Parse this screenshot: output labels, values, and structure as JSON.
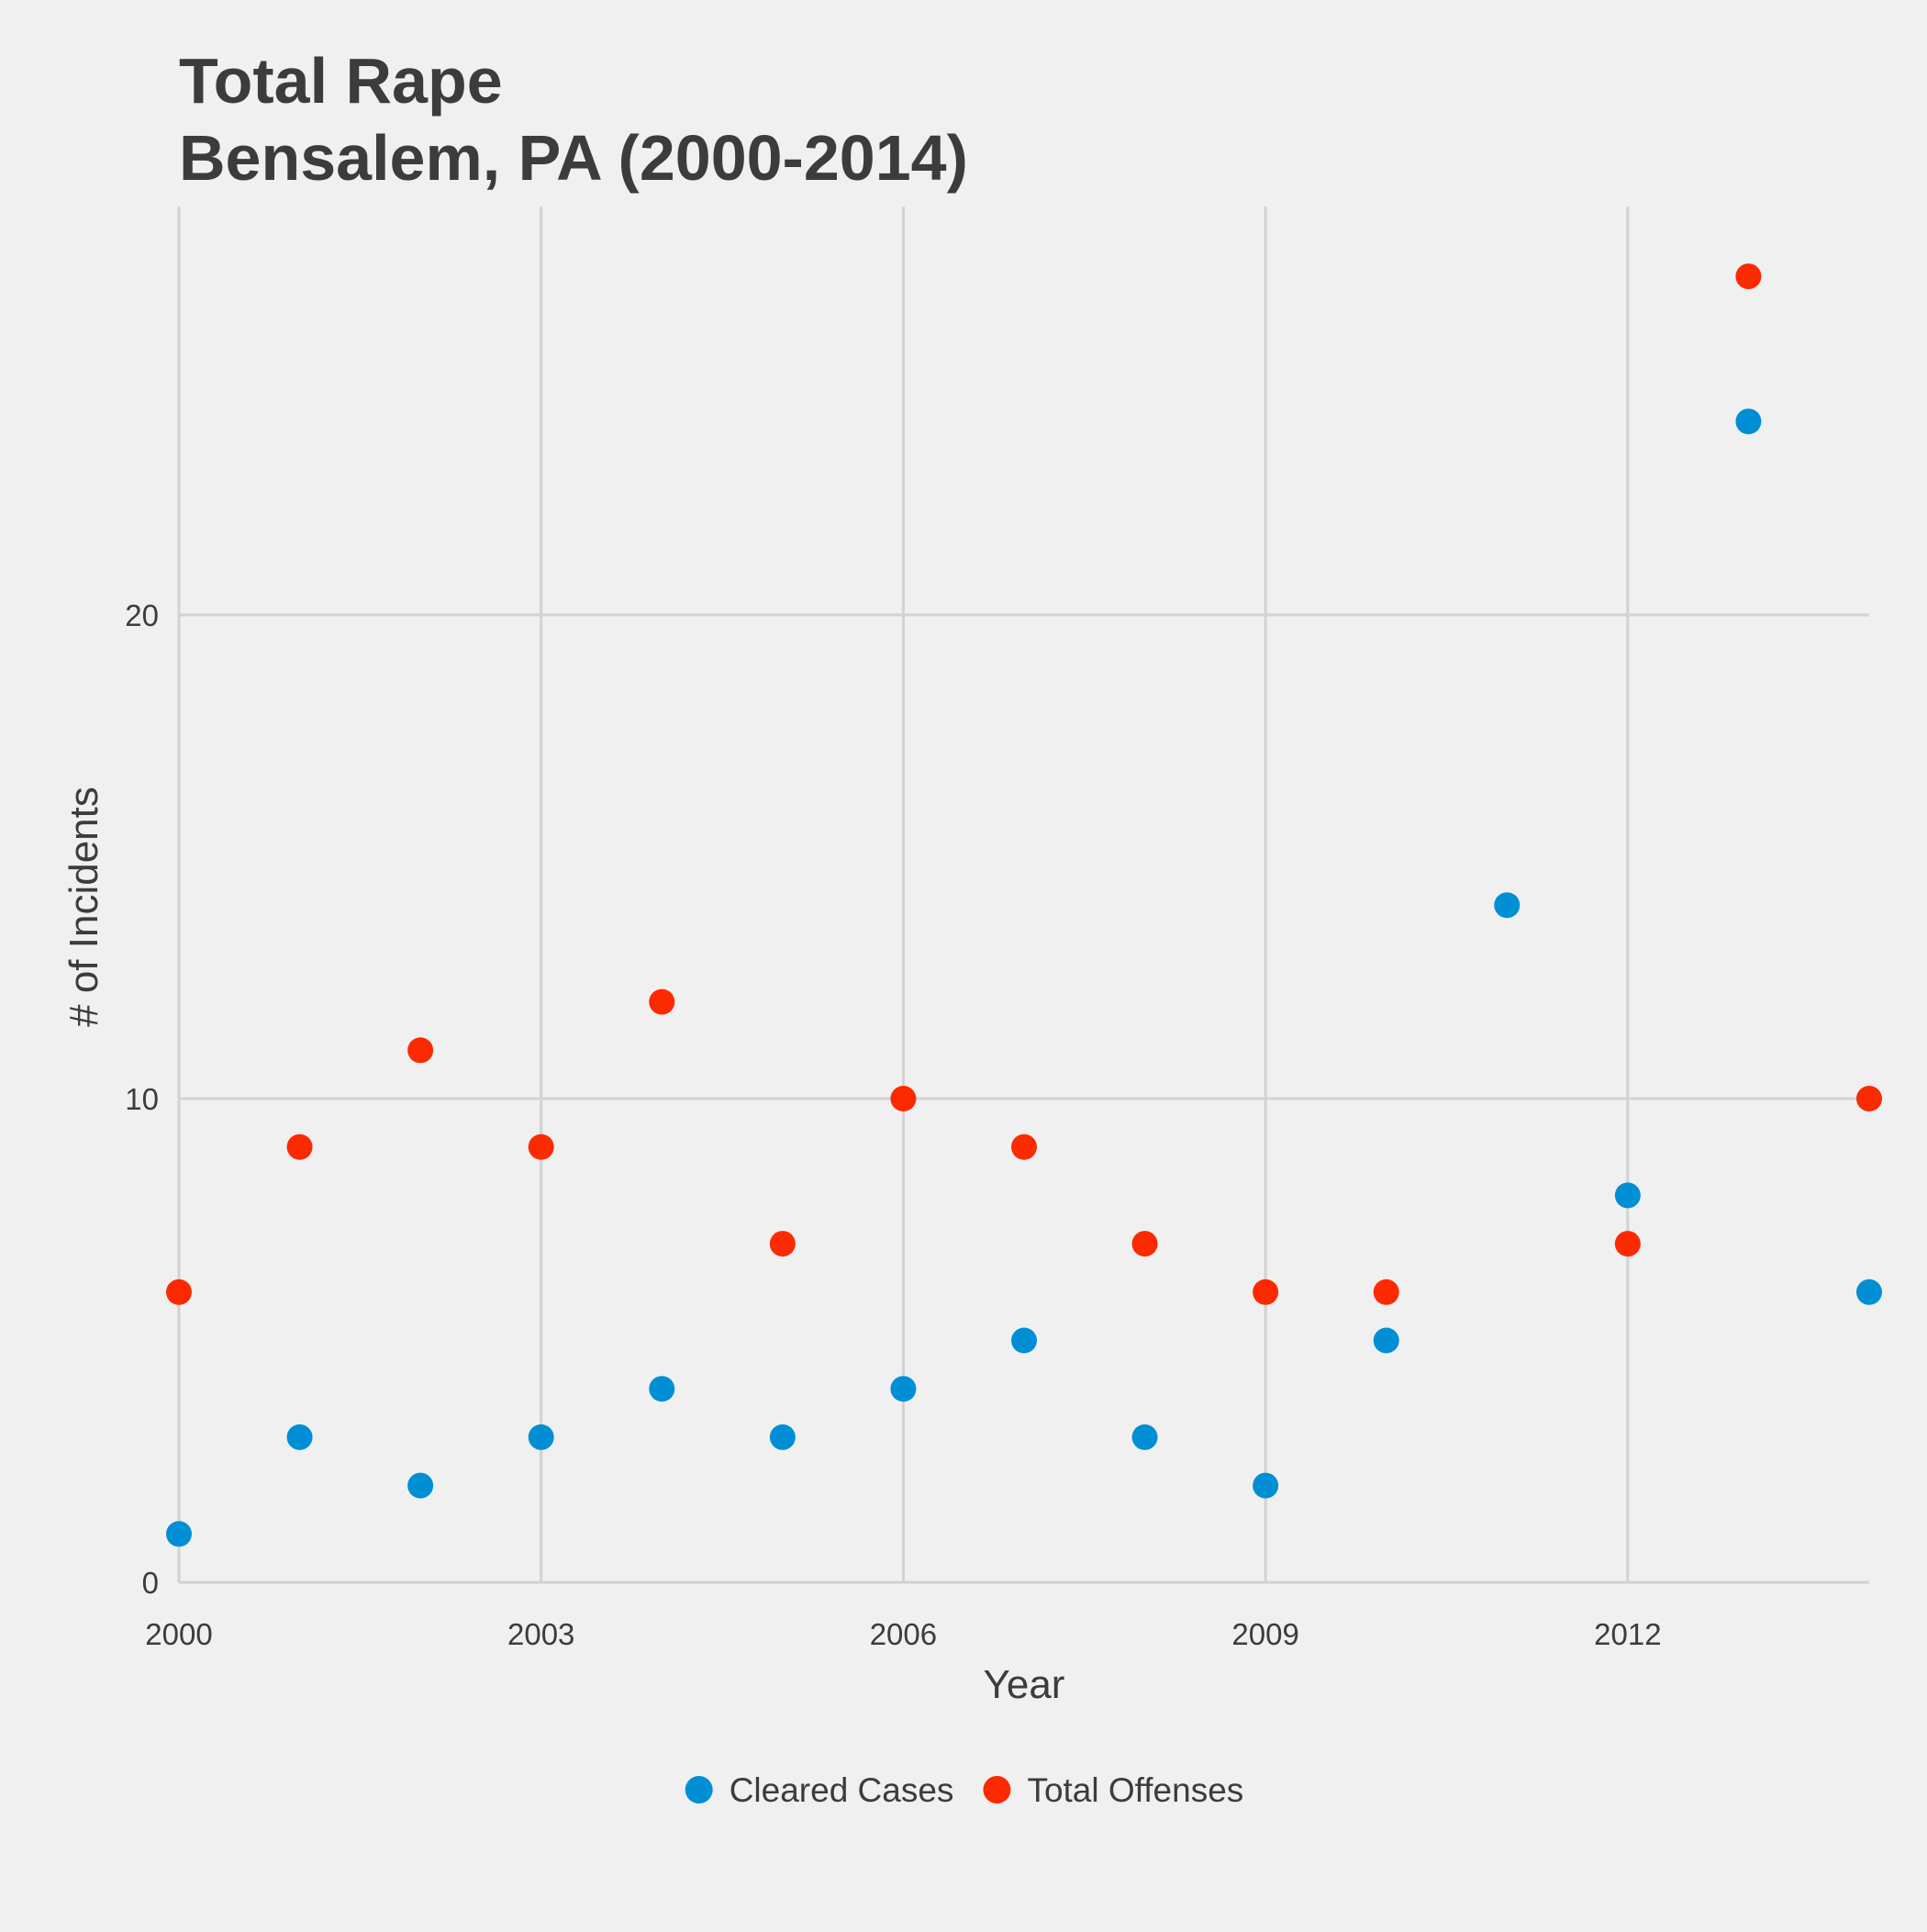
{
  "chart_data": {
    "type": "scatter",
    "title_lines": [
      "Total Rape",
      "Bensalem, PA (2000-2014)"
    ],
    "xlabel": "Year",
    "ylabel": "# of Incidents",
    "xlim": [
      2000,
      2014
    ],
    "ylim": [
      0,
      28
    ],
    "x_ticks": [
      2000,
      2003,
      2006,
      2009,
      2012
    ],
    "y_ticks": [
      0,
      10,
      20
    ],
    "grid": true,
    "legend_position": "bottom",
    "x": [
      2000,
      2001,
      2002,
      2003,
      2004,
      2005,
      2006,
      2007,
      2008,
      2009,
      2010,
      2011,
      2012,
      2013,
      2014
    ],
    "series": [
      {
        "name": "Cleared Cases",
        "color": "#008fd5",
        "values": [
          1,
          3,
          2,
          3,
          4,
          3,
          4,
          5,
          3,
          2,
          5,
          14,
          8,
          24,
          6
        ]
      },
      {
        "name": "Total Offenses",
        "color": "#fc2a00",
        "values": [
          6,
          9,
          11,
          9,
          12,
          7,
          10,
          9,
          7,
          6,
          6,
          null,
          7,
          27,
          10
        ]
      }
    ]
  }
}
